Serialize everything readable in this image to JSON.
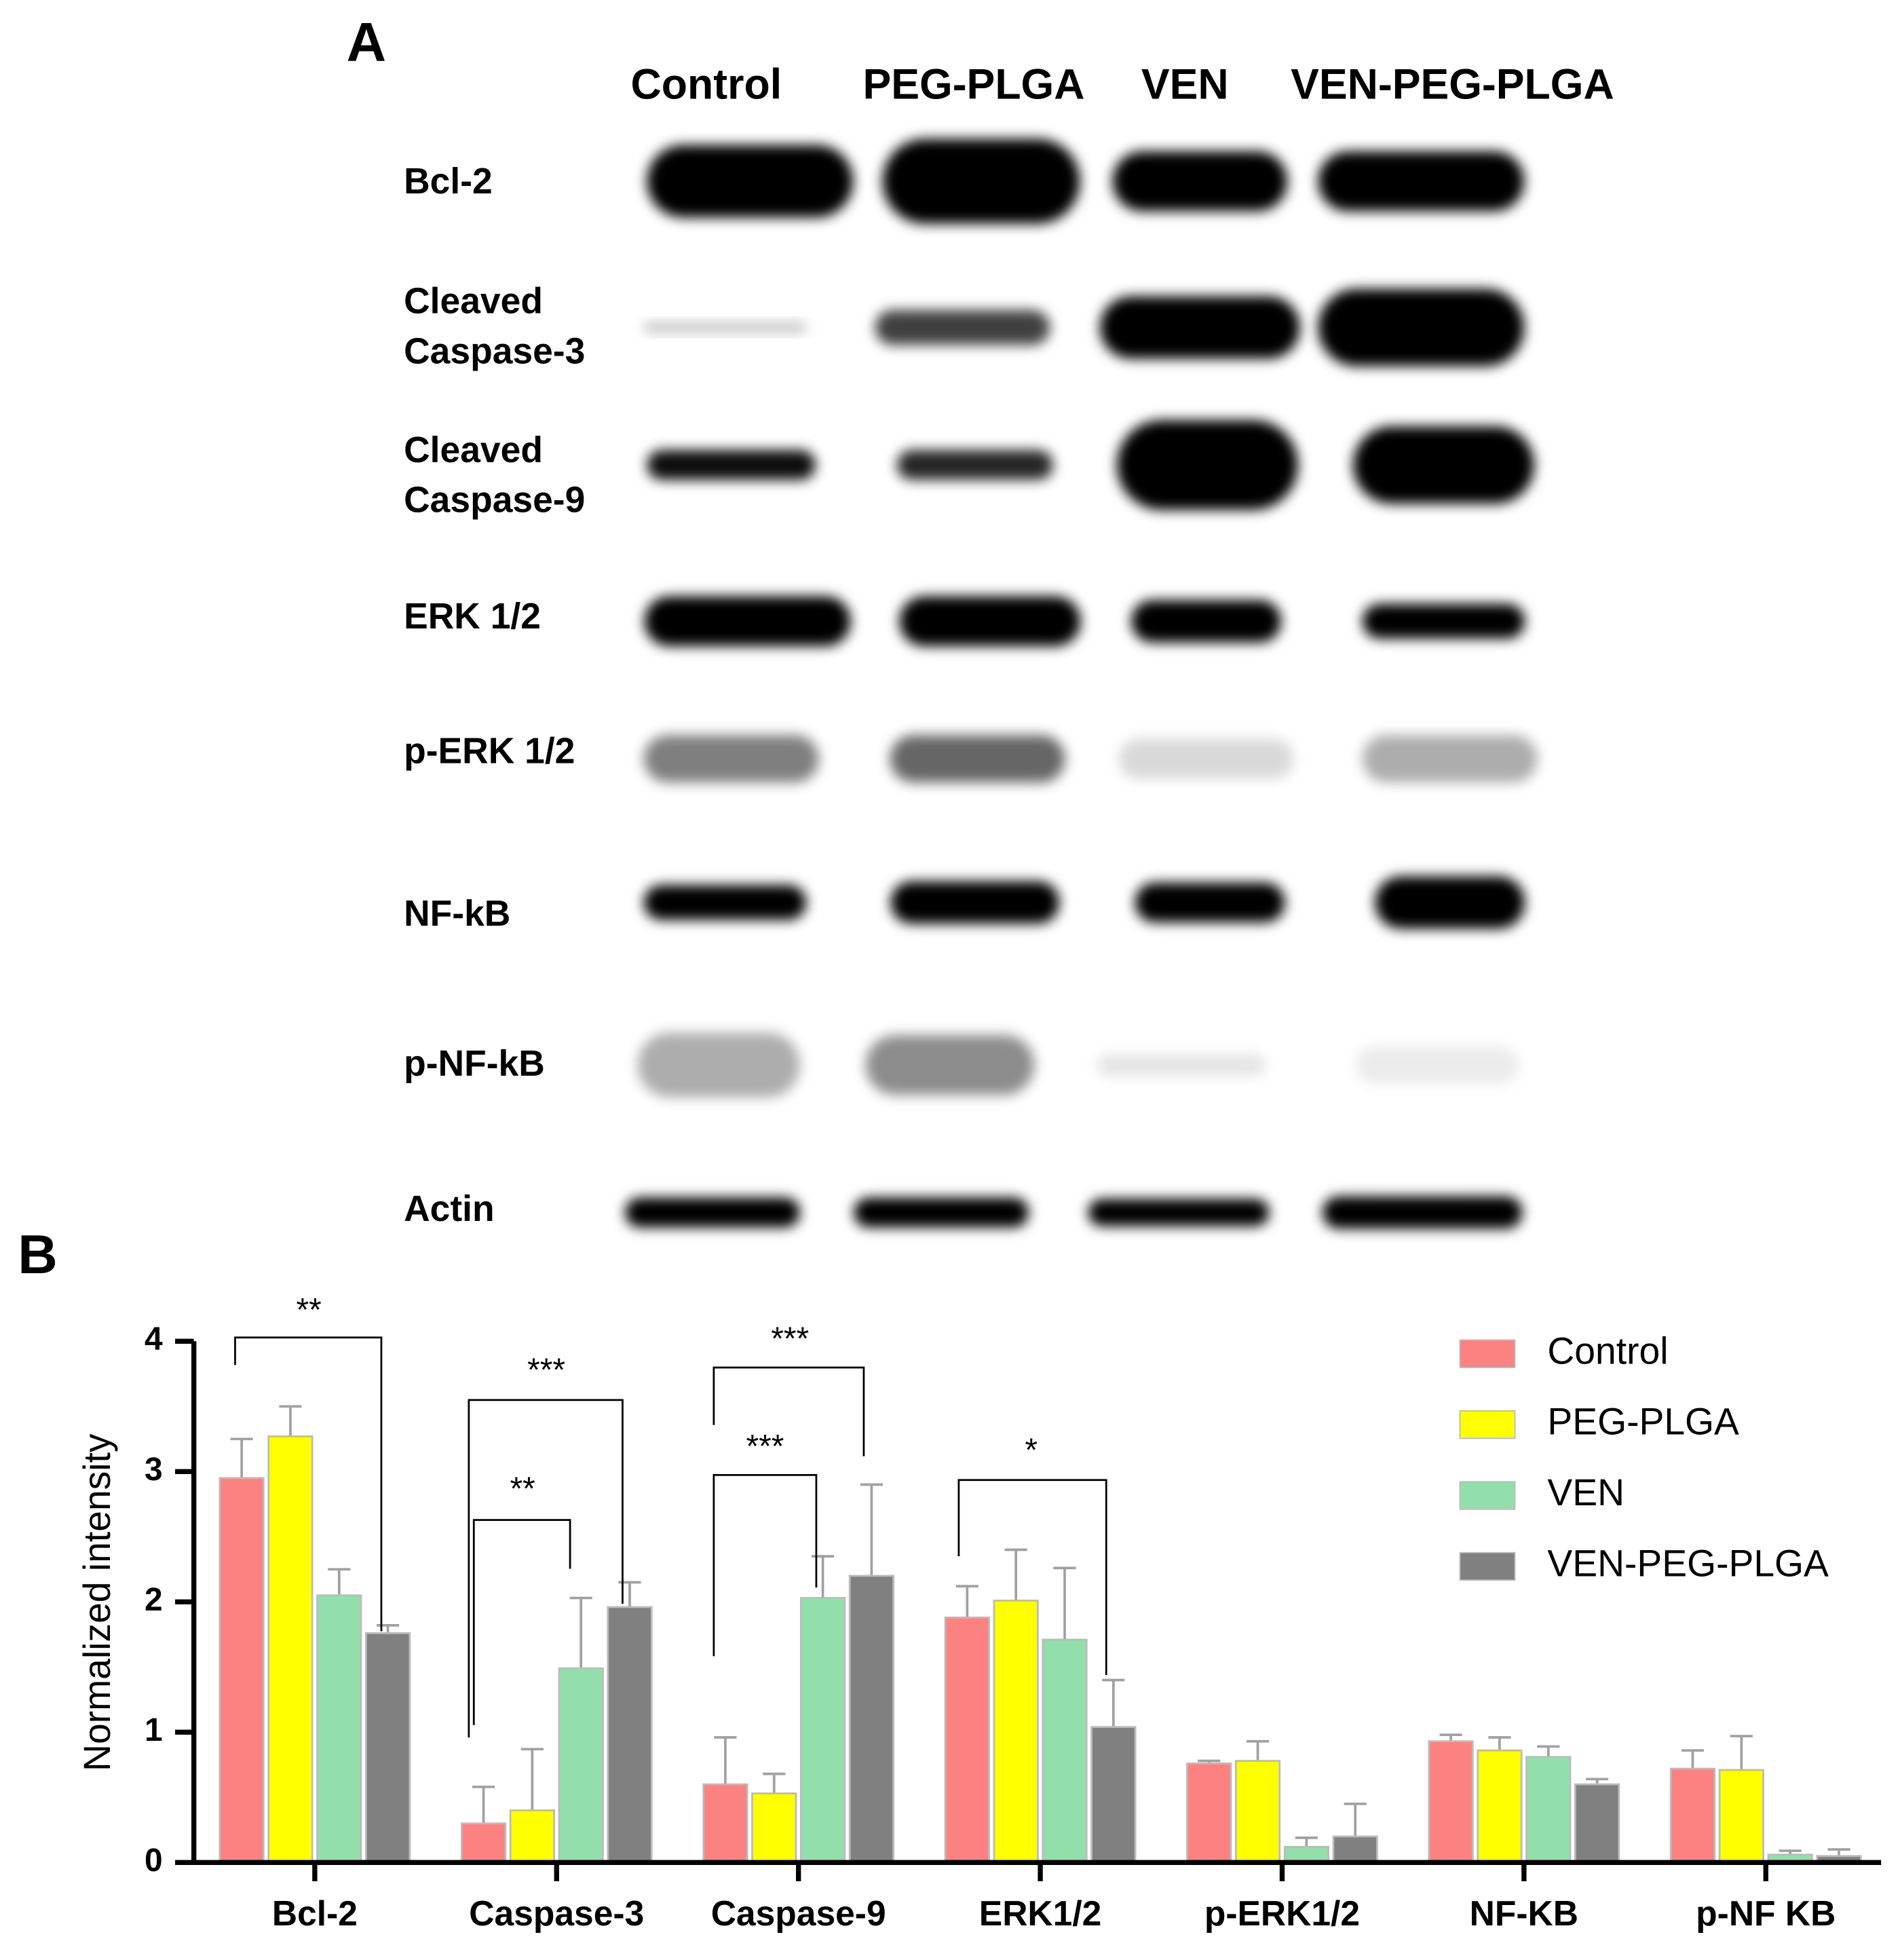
{
  "panel_a": {
    "label": "A",
    "columns": [
      "Control",
      "PEG-PLGA",
      "VEN",
      "VEN-PEG-PLGA"
    ],
    "rows": [
      [
        "Bcl-2"
      ],
      [
        "Cleaved",
        "Caspase-3"
      ],
      [
        "Cleaved",
        "Caspase-9"
      ],
      [
        "ERK 1/2"
      ],
      [
        "p-ERK 1/2"
      ],
      [
        "NF-kB"
      ],
      [
        "p-NF-kB"
      ],
      [
        "Actin"
      ]
    ]
  },
  "chart_data": {
    "type": "bar",
    "panel_label": "B",
    "y_label": "Normalized intensity",
    "categories": [
      "Bcl-2",
      "Caspase-3",
      "Caspase-9",
      "ERK1/2",
      "p-ERK1/2",
      "NF-KB",
      "p-NF KB"
    ],
    "series": [
      {
        "name": "Control",
        "color": "#fc8181",
        "values": [
          2.95,
          0.3,
          0.6,
          1.88,
          0.76,
          0.93,
          0.72
        ],
        "errors": [
          0.3,
          0.28,
          0.36,
          0.24,
          0.02,
          0.05,
          0.14
        ]
      },
      {
        "name": "PEG-PLGA",
        "color": "#ffff00",
        "values": [
          3.27,
          0.4,
          0.53,
          2.01,
          0.78,
          0.86,
          0.71
        ],
        "errors": [
          0.23,
          0.47,
          0.15,
          0.39,
          0.15,
          0.1,
          0.26
        ]
      },
      {
        "name": "VEN",
        "color": "#93dfac",
        "values": [
          2.05,
          1.49,
          2.03,
          1.71,
          0.12,
          0.81,
          0.06
        ],
        "errors": [
          0.2,
          0.54,
          0.32,
          0.55,
          0.07,
          0.08,
          0.03
        ]
      },
      {
        "name": "VEN-PEG-PLGA",
        "color": "#808080",
        "values": [
          1.76,
          1.96,
          2.2,
          1.04,
          0.2,
          0.6,
          0.05
        ],
        "errors": [
          0.06,
          0.19,
          0.7,
          0.36,
          0.25,
          0.04,
          0.05
        ]
      }
    ],
    "ylim": [
      0,
      4
    ],
    "yticks": [
      0,
      1,
      2,
      3,
      4
    ],
    "grid": false,
    "legend": "upper right",
    "annotations": [
      {
        "text": "**"
      },
      {
        "text": "***"
      },
      {
        "text": "**"
      },
      {
        "text": "***"
      },
      {
        "text": "***"
      },
      {
        "text": "*"
      }
    ]
  }
}
